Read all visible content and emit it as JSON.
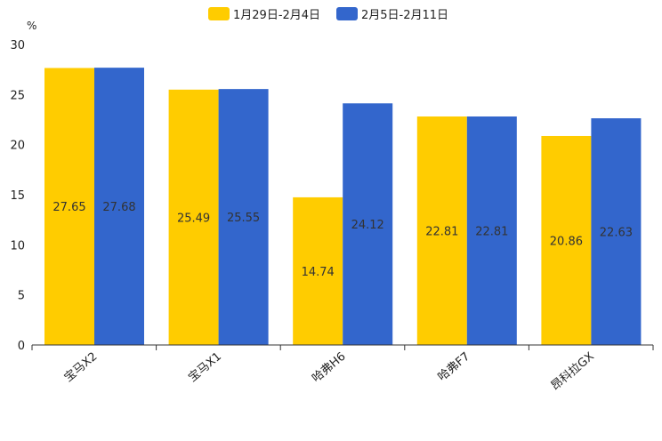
{
  "chart_data": {
    "type": "bar",
    "title": "",
    "xlabel": "",
    "ylabel": "%",
    "ylim": [
      0,
      30
    ],
    "yticks": [
      0,
      5,
      10,
      15,
      20,
      25,
      30
    ],
    "legend_position": "top-center",
    "categories": [
      "宝马X2",
      "宝马X1",
      "哈弗H6",
      "哈弗F7",
      "昂科拉GX"
    ],
    "series": [
      {
        "name": "1月29日-2月4日",
        "color": "#FFCC00",
        "values": [
          27.65,
          25.49,
          14.74,
          22.81,
          20.86
        ]
      },
      {
        "name": "2月5日-2月11日",
        "color": "#3366CC",
        "values": [
          27.68,
          25.55,
          24.12,
          22.81,
          22.63
        ]
      }
    ]
  }
}
